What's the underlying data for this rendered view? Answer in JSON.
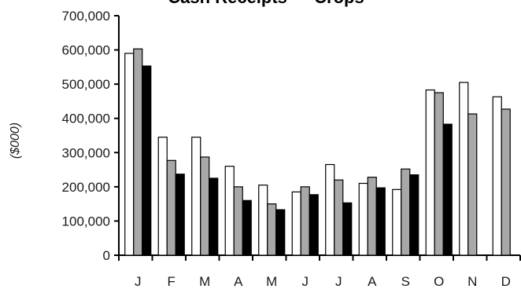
{
  "chart_data": {
    "type": "bar",
    "title": "Cash Receipts — Crops",
    "ylabel": "($000)",
    "xlabel": "",
    "ylim": [
      0,
      700000
    ],
    "yticks": [
      0,
      100000,
      200000,
      300000,
      400000,
      500000,
      600000,
      700000
    ],
    "ytick_labels": [
      "0",
      "100,000",
      "200,000",
      "300,000",
      "400,000",
      "500,000",
      "600,000",
      "700,000"
    ],
    "categories": [
      "J",
      "F",
      "M",
      "A",
      "M",
      "J",
      "J",
      "A",
      "S",
      "O",
      "N",
      "D"
    ],
    "grid": false,
    "legend": "none",
    "series": [
      {
        "fill": "#ffffff",
        "values": [
          590000,
          345000,
          345000,
          260000,
          205000,
          185000,
          265000,
          210000,
          192000,
          483000,
          505000,
          463000
        ]
      },
      {
        "fill": "#a8a8a8",
        "values": [
          603000,
          277000,
          287000,
          200000,
          150000,
          200000,
          220000,
          228000,
          252000,
          475000,
          413000,
          427000
        ]
      },
      {
        "fill": "#000000",
        "values": [
          553000,
          237000,
          225000,
          160000,
          133000,
          177000,
          153000,
          197000,
          235000,
          383000,
          null,
          null
        ]
      }
    ]
  }
}
